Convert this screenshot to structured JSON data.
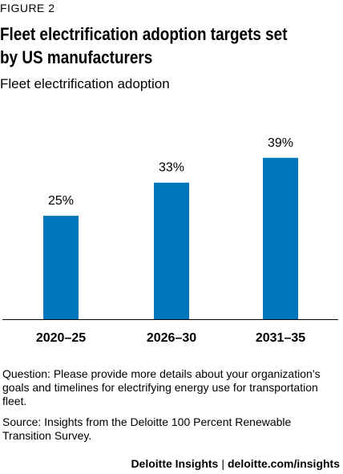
{
  "figure_label": "FIGURE 2",
  "title_lines": [
    "Fleet electrification adoption targets set",
    "by US manufacturers"
  ],
  "subtitle": "Fleet electrification adoption",
  "chart_data": {
    "type": "bar",
    "title": "Fleet electrification adoption targets set by US manufacturers",
    "subtitle": "Fleet electrification adoption",
    "categories": [
      "2020–25",
      "2026–30",
      "2031–35"
    ],
    "values": [
      25,
      33,
      39
    ],
    "value_labels": [
      "25%",
      "33%",
      "39%"
    ],
    "xlabel": "",
    "ylabel": "",
    "ylim": [
      0,
      50
    ],
    "grid": false,
    "legend": "none",
    "bar_color": "#0076BD"
  },
  "question": "Question: Please provide more details about your organization’s goals and timelines for electrifying energy use for transportation fleet.",
  "source": "Source: Insights from the Deloitte 100 Percent Renewable Transition Survey.",
  "footer": {
    "brand": "Deloitte Insights",
    "separator": "|",
    "url": "deloitte.com/insights"
  },
  "colors": {
    "bar": "#0076BD",
    "axis": "#000000",
    "text": "#000000"
  }
}
